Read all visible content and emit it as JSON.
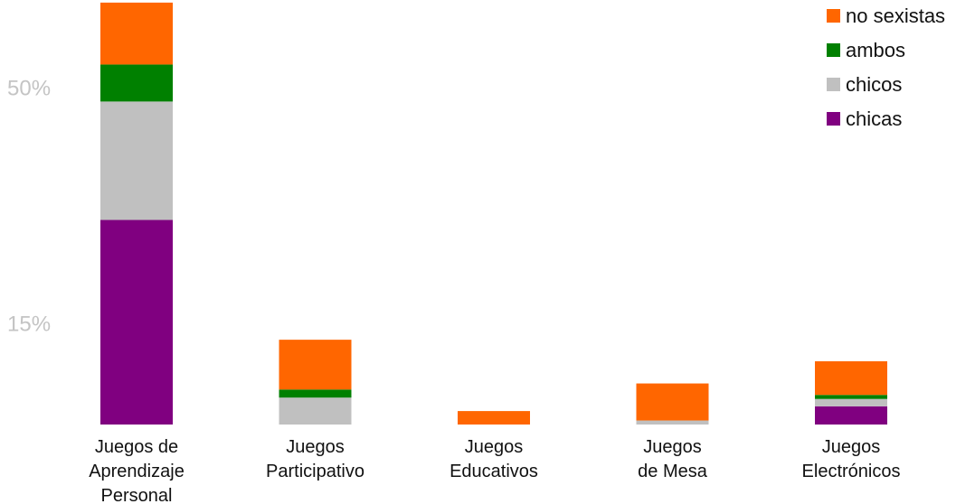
{
  "chart_data": {
    "type": "bar",
    "stacked": true,
    "categories": [
      [
        "Juegos de",
        "Aprendizaje",
        "Personal"
      ],
      [
        "Juegos",
        "Participativo"
      ],
      [
        "Juegos",
        "Educativos"
      ],
      [
        "Juegos",
        "de Mesa"
      ],
      [
        "Juegos",
        "Electrónicos"
      ]
    ],
    "series": [
      {
        "name": "chicas",
        "color": "#800080",
        "values": [
          30.4,
          0,
          0,
          0,
          2.7
        ]
      },
      {
        "name": "chicos",
        "color": "#c0c0c0",
        "values": [
          17.6,
          4.0,
          0,
          0.6,
          1.1
        ]
      },
      {
        "name": "ambos",
        "color": "#008000",
        "values": [
          5.5,
          1.2,
          0,
          0,
          0.6
        ]
      },
      {
        "name": "no sexistas",
        "color": "#ff6600",
        "values": [
          9.2,
          7.4,
          2.0,
          5.5,
          5.0
        ]
      }
    ],
    "yticks": [
      {
        "value": 15,
        "label": "15%"
      },
      {
        "value": 50,
        "label": "50%"
      }
    ],
    "ylim": [
      0,
      60
    ],
    "legend": {
      "position": "top-right",
      "order": [
        "no sexistas",
        "ambos",
        "chicos",
        "chicas"
      ]
    },
    "grid": false,
    "title": "",
    "xlabel": "",
    "ylabel": ""
  }
}
